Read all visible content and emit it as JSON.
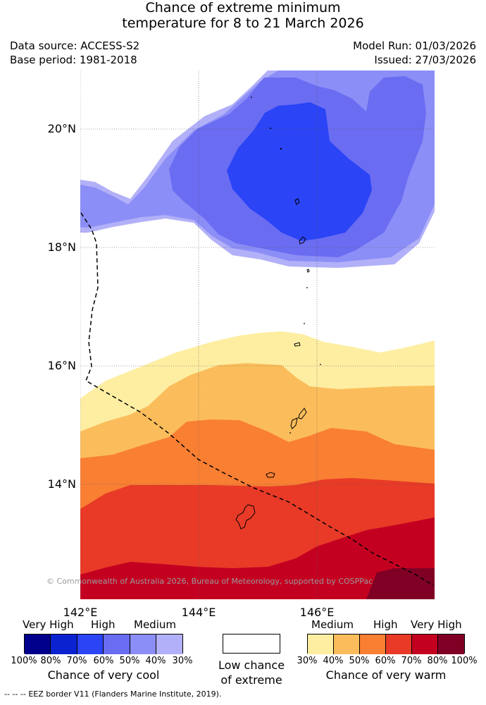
{
  "title": {
    "line1": "Chance of extreme minimum",
    "line2": "temperature for 8 to 21 March 2026"
  },
  "meta": {
    "data_source": "Data source: ACCESS-S2",
    "base_period": "Base period: 1981-2018",
    "model_run": "Model Run: 01/03/2026",
    "issued": "Issued: 27/03/2026"
  },
  "axes": {
    "lat_labels": [
      "20°N",
      "18°N",
      "16°N",
      "14°N"
    ],
    "lon_labels": [
      "142°E",
      "144°E",
      "146°E"
    ]
  },
  "map": {
    "copyright": "© Commonwealth of Australia 2026, Bureau of Meteorology, supported by COSPPac"
  },
  "legend": {
    "cool": {
      "headers": [
        "Very High",
        "High",
        "Medium"
      ],
      "colors": [
        "#00008c",
        "#0a22cf",
        "#2a44f6",
        "#6a6cf2",
        "#8c8ef7",
        "#b2b0f8"
      ],
      "ticks": [
        "100%",
        "80%",
        "70%",
        "60%",
        "50%",
        "40%",
        "30%"
      ],
      "caption": "Chance of very cool"
    },
    "neutral": {
      "color": "#ffffff",
      "caption_line1": "Low chance",
      "caption_line2": "of extreme"
    },
    "warm": {
      "headers": [
        "Medium",
        "High",
        "Very High"
      ],
      "colors": [
        "#fdeea2",
        "#fbbd5b",
        "#f97f33",
        "#e83a27",
        "#c40021",
        "#800025"
      ],
      "ticks": [
        "30%",
        "40%",
        "50%",
        "60%",
        "70%",
        "80%",
        "100%"
      ],
      "caption": "Chance of very warm"
    }
  },
  "footer": {
    "eez_line_symbol": "-- -- --",
    "eez_text": "EEZ border V11 (Flanders Marine Institute, 2019)."
  }
}
